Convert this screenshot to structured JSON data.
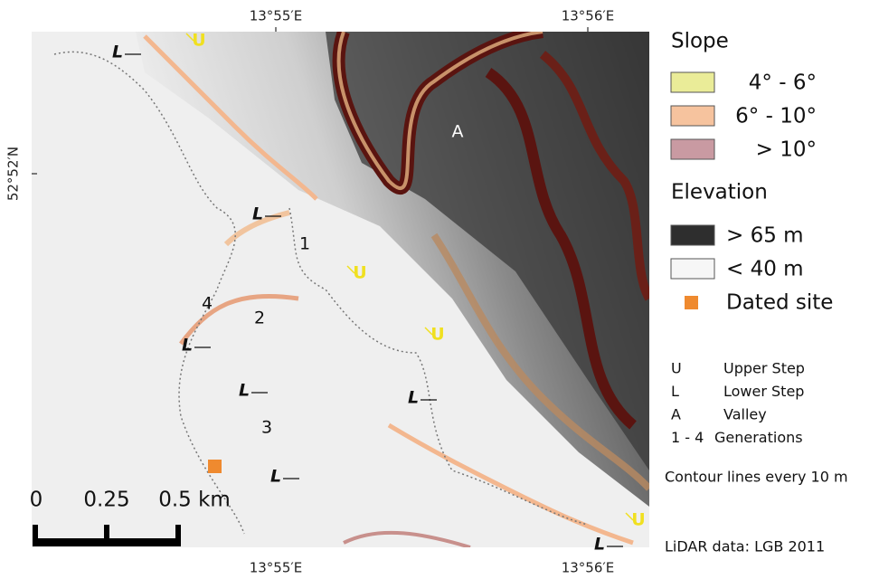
{
  "coordinates": {
    "top": [
      "13°55′E",
      "13°56′E"
    ],
    "bottom": [
      "13°55′E",
      "13°56′E"
    ],
    "left": [
      "52°52′N"
    ]
  },
  "map_labels": {
    "valley": "A",
    "generations": [
      "1",
      "2",
      "3",
      "4"
    ],
    "upper_steps": [
      "U",
      "U",
      "U",
      "U"
    ],
    "lower_steps": [
      "L",
      "L",
      "L",
      "L",
      "L",
      "L",
      "L"
    ]
  },
  "scale_bar": {
    "labels": [
      "0",
      "0.25",
      "0.5 km"
    ]
  },
  "legend": {
    "slope": {
      "title": "Slope",
      "classes": [
        {
          "label": "4° -  6°",
          "color": "#eaec98"
        },
        {
          "label": "6° - 10°",
          "color": "#f6c39e"
        },
        {
          "label": "> 10°",
          "color": "#c99aa2"
        }
      ]
    },
    "elevation": {
      "title": "Elevation",
      "classes": [
        {
          "label": "> 65 m",
          "color": "#2e2e2e"
        },
        {
          "label": "< 40 m",
          "color": "#f6f6f6"
        }
      ]
    },
    "dated_site": {
      "label": "Dated site",
      "color": "#ef8a2f"
    }
  },
  "key": [
    {
      "symbol": "U",
      "meaning": "Upper Step"
    },
    {
      "symbol": "L",
      "meaning": "Lower Step"
    },
    {
      "symbol": "A",
      "meaning": "Valley"
    },
    {
      "symbol": "1 - 4",
      "meaning": "Generations"
    }
  ],
  "notes": [
    "Contour lines every 10 m",
    "LiDAR data: LGB 2011"
  ]
}
